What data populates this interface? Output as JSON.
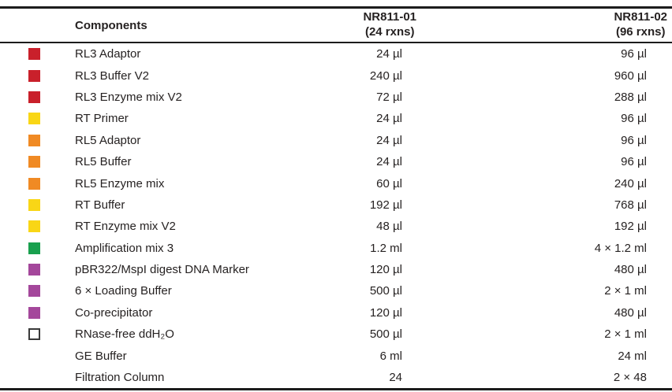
{
  "table": {
    "columns": [
      {
        "label": "Components"
      },
      {
        "label": "NR811-01",
        "sublabel": "(24 rxns)"
      },
      {
        "label": "NR811-02",
        "sublabel": "(96 rxns)"
      }
    ],
    "swatch_colors": {
      "red": "#C9202B",
      "yellow": "#F9D616",
      "orange": "#F08A24",
      "green": "#19A04E",
      "purple": "#A4479B",
      "white": "#FFFFFF"
    },
    "rows": [
      {
        "swatch": "red",
        "component": "RL3 Adaptor",
        "qty_24": "24 µl",
        "qty_96": "96 µl"
      },
      {
        "swatch": "red",
        "component": "RL3 Buffer V2",
        "qty_24": "240 µl",
        "qty_96": "960 µl"
      },
      {
        "swatch": "red",
        "component": "RL3 Enzyme mix V2",
        "qty_24": "72 µl",
        "qty_96": "288 µl"
      },
      {
        "swatch": "yellow",
        "component": "RT Primer",
        "qty_24": "24 µl",
        "qty_96": "96 µl"
      },
      {
        "swatch": "orange",
        "component": "RL5 Adaptor",
        "qty_24": "24 µl",
        "qty_96": "96 µl"
      },
      {
        "swatch": "orange",
        "component": "RL5 Buffer",
        "qty_24": "24 µl",
        "qty_96": "96 µl"
      },
      {
        "swatch": "orange",
        "component": "RL5 Enzyme mix",
        "qty_24": "60 µl",
        "qty_96": "240 µl"
      },
      {
        "swatch": "yellow",
        "component": "RT Buffer",
        "qty_24": "192 µl",
        "qty_96": "768 µl"
      },
      {
        "swatch": "yellow",
        "component": "RT Enzyme mix V2",
        "qty_24": "48 µl",
        "qty_96": "192 µl"
      },
      {
        "swatch": "green",
        "component": "Amplification mix 3",
        "qty_24": "1.2 ml",
        "qty_96": "4 × 1.2 ml"
      },
      {
        "swatch": "purple",
        "component": "pBR322/MspI digest DNA Marker",
        "qty_24": "120 µl",
        "qty_96": "480 µl"
      },
      {
        "swatch": "purple",
        "component": "6 × Loading Buffer",
        "qty_24": "500 µl",
        "qty_96": "2 × 1 ml"
      },
      {
        "swatch": "purple",
        "component": "Co-precipitator",
        "qty_24": "120 µl",
        "qty_96": "480 µl"
      },
      {
        "swatch": "white",
        "component": "RNase-free ddH₂O",
        "qty_24": "500 µl",
        "qty_96": "2 × 1 ml"
      },
      {
        "swatch": "none",
        "component": "GE Buffer",
        "qty_24": "6 ml",
        "qty_96": "24 ml"
      },
      {
        "swatch": "none",
        "component": "Filtration Column",
        "qty_24": "24",
        "qty_96": "2 × 48"
      }
    ]
  }
}
